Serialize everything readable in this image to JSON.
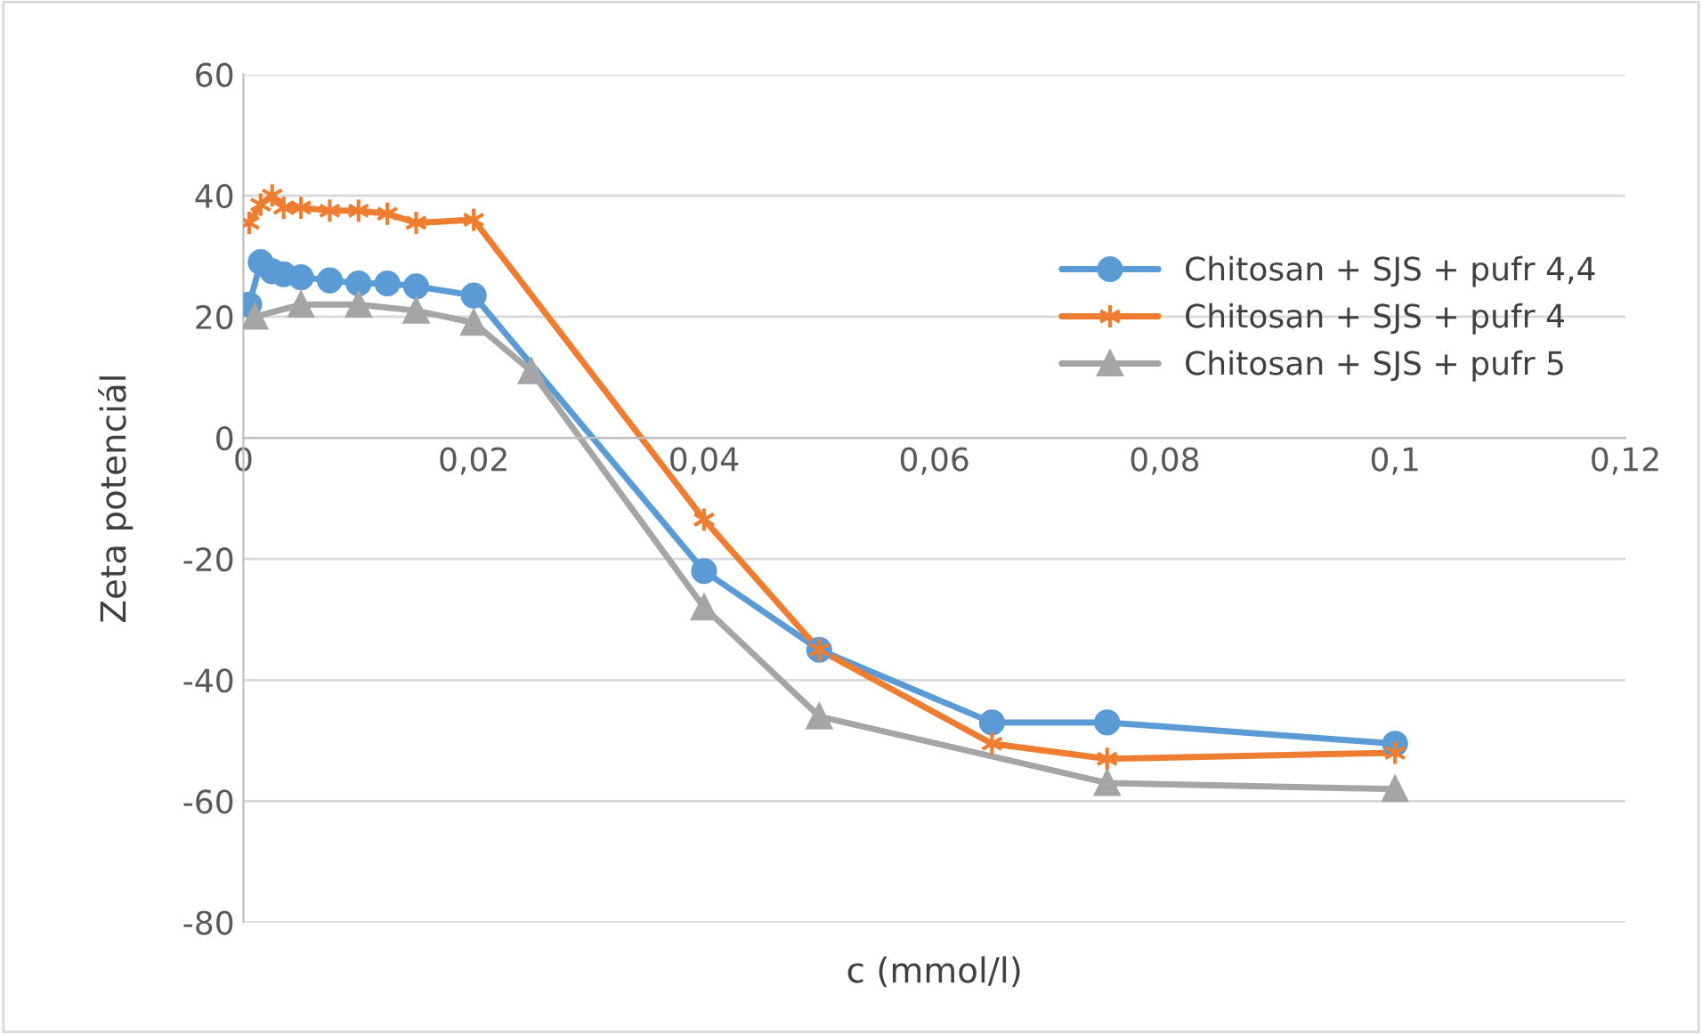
{
  "chart_data": {
    "type": "line",
    "xlabel": "c (mmol/l)",
    "ylabel": "Zeta potenciál",
    "xlim": [
      0,
      0.12
    ],
    "xticks": [
      0,
      {
        "value": 0.02,
        "label": "0,02"
      },
      {
        "value": 0.04,
        "label": "0,04"
      },
      {
        "value": 0.06,
        "label": "0,06"
      },
      {
        "value": 0.08,
        "label": "0,08"
      },
      {
        "value": 0.1,
        "label": "0,1"
      },
      {
        "value": 0.12,
        "label": "0,12"
      }
    ],
    "ylim": [
      -80,
      60
    ],
    "yticks": [
      -80,
      -60,
      -40,
      -20,
      0,
      20,
      40,
      60
    ],
    "grid": "y",
    "legend": "right",
    "series": [
      {
        "name": "Chitosan + SJS + pufr 4,4",
        "color": "#5b9bd5",
        "marker": "circle",
        "x": [
          0.0005,
          0.0015,
          0.0025,
          0.0035,
          0.005,
          0.0075,
          0.01,
          0.0125,
          0.015,
          0.02,
          0.04,
          0.05,
          0.065,
          0.075,
          0.1
        ],
        "values": [
          22,
          29,
          27.5,
          27,
          26.5,
          26,
          25.5,
          25.5,
          25,
          23.5,
          -22,
          -35,
          -47,
          -47,
          -50.5
        ]
      },
      {
        "name": "Chitosan + SJS + pufr 4",
        "color": "#ed7d31",
        "marker": "cross",
        "x": [
          0.0005,
          0.0015,
          0.0025,
          0.0035,
          0.005,
          0.0075,
          0.01,
          0.0125,
          0.015,
          0.02,
          0.04,
          0.05,
          0.065,
          0.075,
          0.1
        ],
        "values": [
          35.5,
          38.5,
          40,
          38,
          38,
          37.5,
          37.5,
          37,
          35.5,
          36,
          -13.5,
          -35,
          -50.5,
          -53,
          -52
        ]
      },
      {
        "name": "Chitosan + SJS + pufr 5",
        "color": "#a5a5a5",
        "marker": "triangle",
        "x": [
          0.001,
          0.005,
          0.01,
          0.015,
          0.02,
          0.025,
          0.04,
          0.05,
          0.075,
          0.1
        ],
        "values": [
          20,
          22,
          22,
          21,
          19,
          11,
          -28,
          -46,
          -57,
          -58
        ]
      }
    ]
  }
}
